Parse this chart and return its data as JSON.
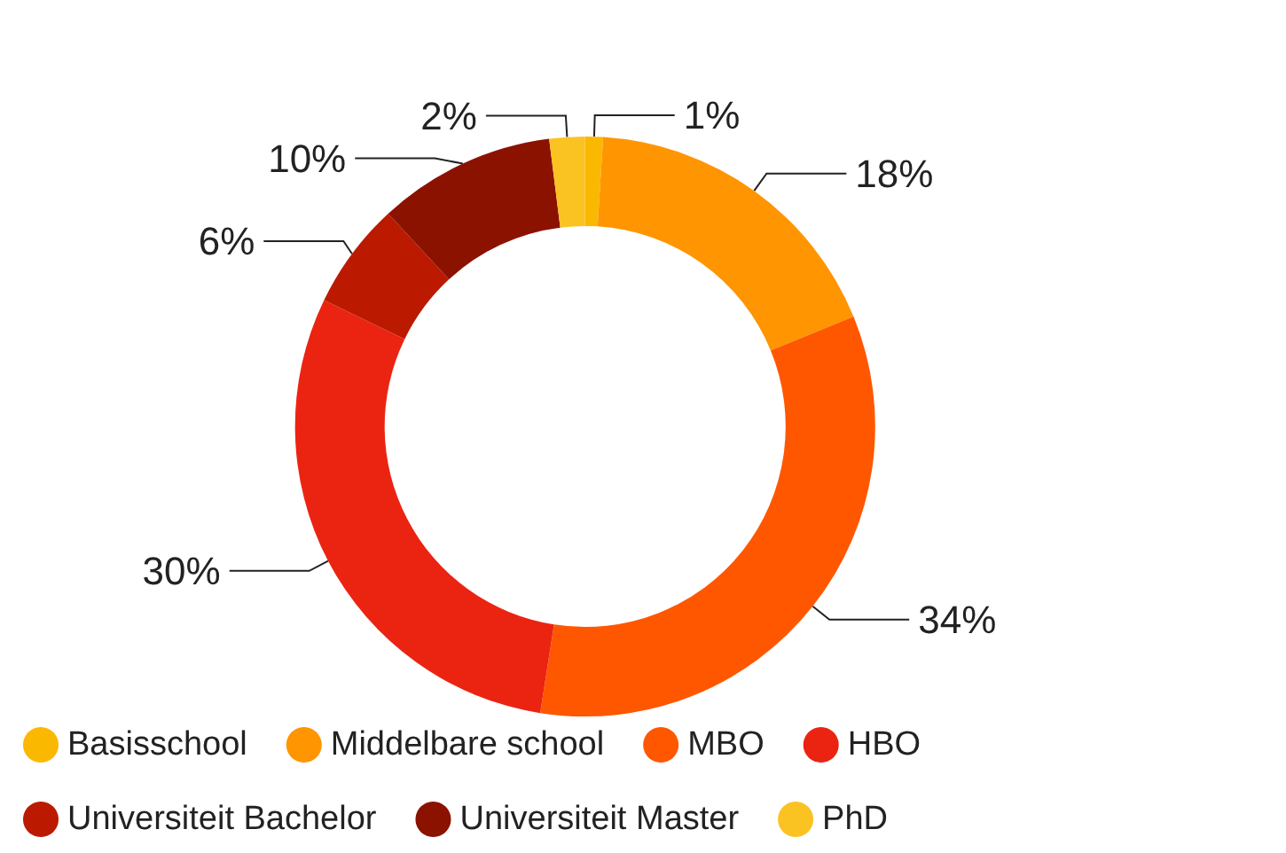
{
  "chart_data": {
    "type": "donut",
    "categories": [
      "Basisschool",
      "Middelbare school",
      "MBO",
      "HBO",
      "Universiteit Bachelor",
      "Universiteit Master",
      "PhD"
    ],
    "values": [
      1,
      18,
      34,
      30,
      6,
      10,
      2
    ],
    "colors": [
      "#fbb800",
      "#ff9500",
      "#ff5700",
      "#eb2412",
      "#bb1a00",
      "#8c1200",
      "#fbc322"
    ],
    "value_labels": [
      "1%",
      "18%",
      "34%",
      "30%",
      "6%",
      "10%",
      "2%"
    ],
    "legend": "bottom"
  }
}
